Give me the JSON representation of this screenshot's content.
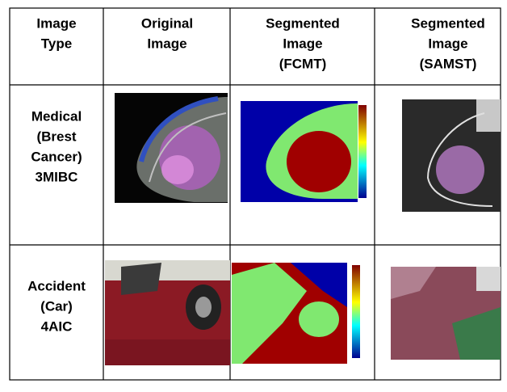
{
  "table": {
    "header": [
      [
        "Image",
        "Type"
      ],
      [
        "Original",
        "Image"
      ],
      [
        "Segmented",
        "Image",
        "(FCMT)"
      ],
      [
        "Segmented",
        "Image",
        "(SAMST)"
      ]
    ],
    "rows": [
      [
        [
          "Medical",
          "(Brest",
          "Cancer)",
          "3MIBC"
        ]
      ],
      [
        [
          "Accident",
          "(Car)",
          "4AIC"
        ]
      ]
    ]
  }
}
